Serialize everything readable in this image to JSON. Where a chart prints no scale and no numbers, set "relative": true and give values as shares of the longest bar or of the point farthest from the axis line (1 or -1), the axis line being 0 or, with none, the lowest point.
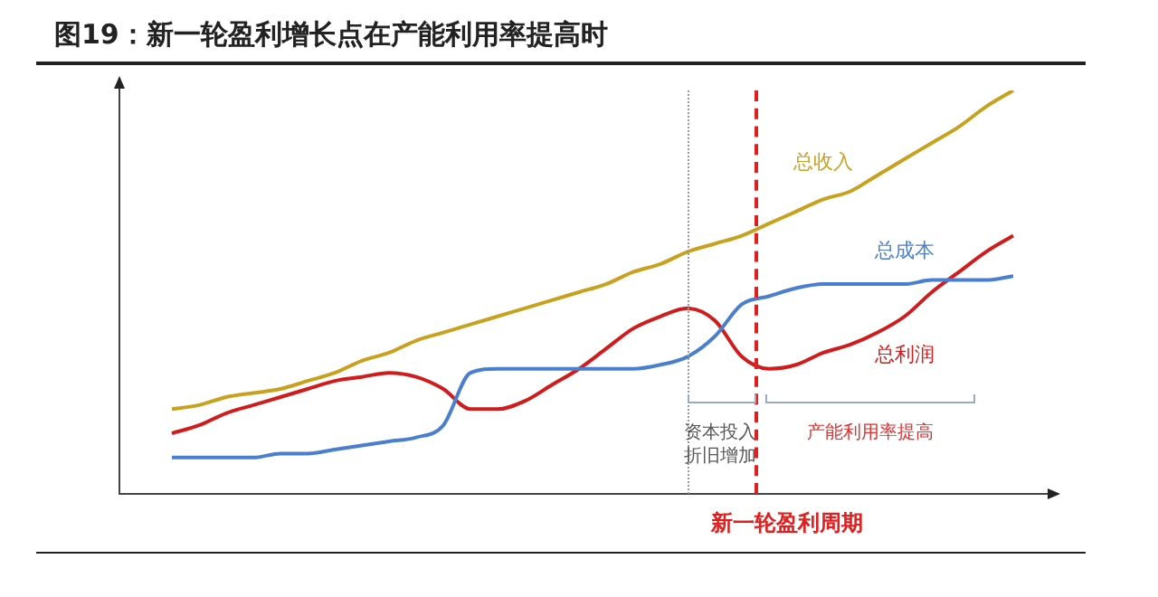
{
  "chart_data": {
    "type": "line",
    "title": "图19：新一轮盈利增长点在产能利用率提高时",
    "relative": true,
    "legend": false,
    "marker": "none",
    "line_style": "solid",
    "categories": [
      null,
      null,
      null,
      null,
      null,
      null,
      null,
      null,
      null,
      null,
      null,
      null,
      null,
      null,
      null,
      null,
      null,
      null,
      null,
      null,
      null,
      null,
      null,
      null,
      null,
      null,
      null,
      null,
      null,
      null,
      null,
      null
    ],
    "series": [
      {
        "name": "总收入",
        "color": "#c8a21e",
        "values": [
          0.21,
          0.22,
          0.24,
          0.25,
          0.26,
          0.28,
          0.3,
          0.33,
          0.35,
          0.38,
          0.4,
          0.42,
          0.44,
          0.46,
          0.48,
          0.5,
          0.52,
          0.55,
          0.57,
          0.6,
          0.62,
          0.64,
          0.67,
          0.7,
          0.73,
          0.75,
          0.79,
          0.83,
          0.87,
          0.91,
          0.96,
          1
        ]
      },
      {
        "name": "总成本",
        "color": "#4a7fd0",
        "values": [
          0.09,
          0.09,
          0.09,
          0.09,
          0.1,
          0.1,
          0.11,
          0.12,
          0.13,
          0.14,
          0.17,
          0.3,
          0.31,
          0.31,
          0.31,
          0.31,
          0.31,
          0.31,
          0.32,
          0.34,
          0.39,
          0.47,
          0.49,
          0.51,
          0.52,
          0.52,
          0.52,
          0.52,
          0.53,
          0.53,
          0.53,
          0.54
        ]
      },
      {
        "name": "总利润",
        "color": "#d01c1c",
        "values": [
          0.15,
          0.17,
          0.2,
          0.22,
          0.24,
          0.26,
          0.28,
          0.29,
          0.3,
          0.29,
          0.26,
          0.21,
          0.21,
          0.23,
          0.27,
          0.31,
          0.36,
          0.41,
          0.44,
          0.46,
          0.43,
          0.34,
          0.31,
          0.32,
          0.35,
          0.37,
          0.4,
          0.44,
          0.5,
          0.55,
          0.6,
          0.64
        ]
      }
    ],
    "annotations": [
      "资本投入折旧增加",
      "产能利用率提高",
      "新一轮盈利周期"
    ]
  }
}
